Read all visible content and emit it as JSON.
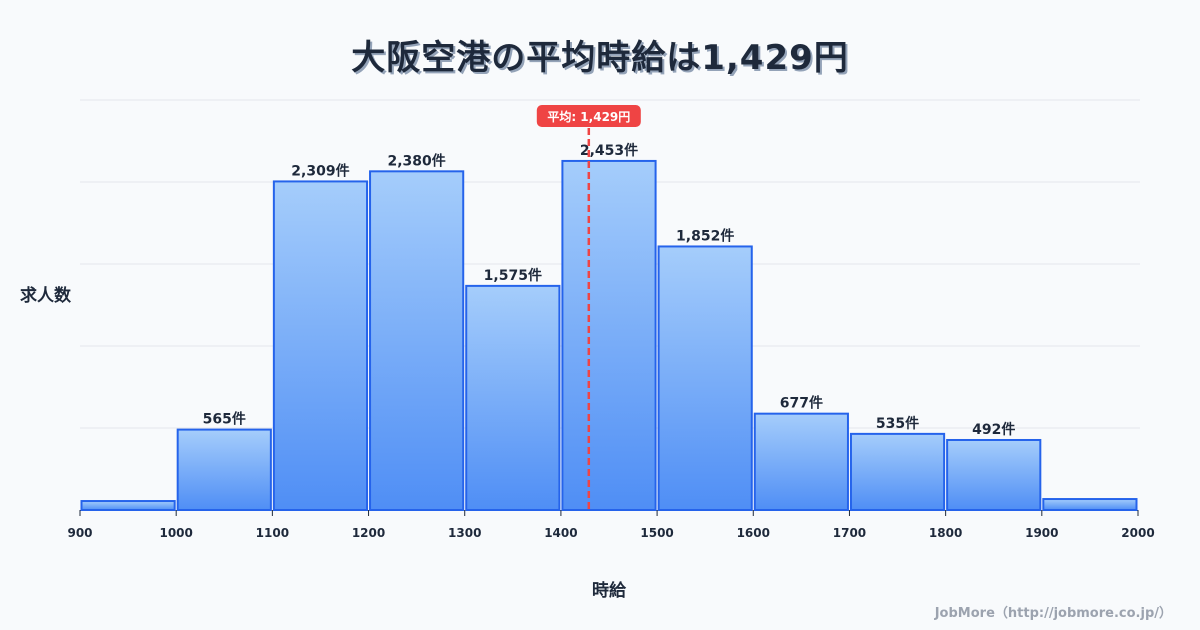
{
  "title": "大阪空港の平均時給は1,429円",
  "credit": "JobMore（http://jobmore.co.jp/）",
  "colors": {
    "bar_top": "#a5cdfb",
    "bar_bottom": "#4f8ef5",
    "bar_stroke": "#2563eb",
    "mean_line": "#ef4444",
    "grid": "#e5e7eb"
  },
  "chart_data": {
    "type": "bar",
    "title": "大阪空港の平均時給は1,429円",
    "xlabel": "時給",
    "ylabel": "求人数",
    "x_ticks": [
      "900",
      "1000",
      "1100",
      "1200",
      "1300",
      "1400",
      "1500",
      "1600",
      "1700",
      "1800",
      "1900",
      "2000"
    ],
    "bins": [
      [
        900,
        1000
      ],
      [
        1000,
        1100
      ],
      [
        1100,
        1200
      ],
      [
        1200,
        1300
      ],
      [
        1300,
        1400
      ],
      [
        1400,
        1500
      ],
      [
        1500,
        1600
      ],
      [
        1600,
        1700
      ],
      [
        1700,
        1800
      ],
      [
        1800,
        1900
      ],
      [
        1900,
        2000
      ]
    ],
    "values": [
      63,
      565,
      2309,
      2380,
      1575,
      2453,
      1852,
      677,
      535,
      492,
      77
    ],
    "labels": [
      "",
      "565件",
      "2,309件",
      "2,380件",
      "1,575件",
      "2,453件",
      "1,852件",
      "677件",
      "535件",
      "492件",
      ""
    ],
    "mean": {
      "value": 1429,
      "label": "平均: 1,429円"
    },
    "xlim": [
      900,
      2000
    ],
    "grid": true
  }
}
